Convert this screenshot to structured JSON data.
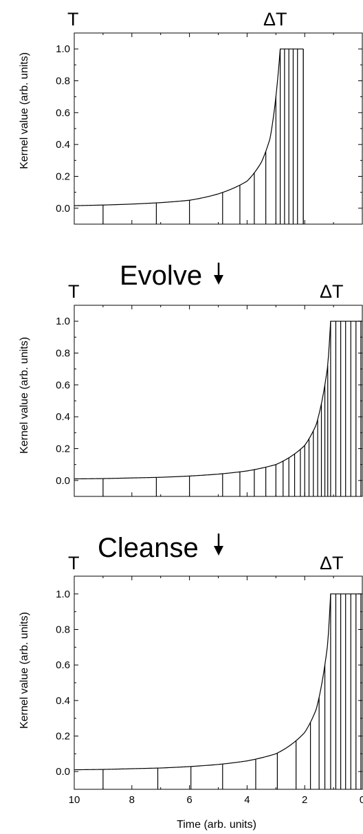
{
  "chart_data": [
    {
      "type": "line",
      "title": "",
      "corner_left": "T",
      "corner_right": "ΔT",
      "xlabel": "",
      "ylabel": "Kernel value (arb. units)",
      "xlim": [
        10,
        0
      ],
      "ylim": [
        -0.1,
        1.1
      ],
      "yticks": [
        "0.0",
        "0.2",
        "0.4",
        "0.6",
        "0.8",
        "1.0"
      ],
      "xticks": [],
      "kernel_curve": {
        "x": [
          10,
          9,
          8,
          7,
          6,
          5,
          4,
          3.5,
          3.2,
          3.0,
          2.85
        ],
        "y": [
          0.016,
          0.02,
          0.026,
          0.035,
          0.05,
          0.09,
          0.17,
          0.29,
          0.44,
          0.7,
          1.0
        ],
        "plateau_x": [
          2.85,
          2.05
        ]
      },
      "bin_edges_x": [
        9.0,
        7.15,
        6.0,
        4.85,
        4.25,
        3.75,
        3.35,
        3.0,
        2.85,
        2.7,
        2.55,
        2.4,
        2.25,
        2.05
      ]
    },
    {
      "type": "line",
      "title": "Evolve",
      "corner_left": "T",
      "corner_right": "ΔT",
      "xlabel": "",
      "ylabel": "Kernel value (arb. units)",
      "xlim": [
        10,
        0
      ],
      "ylim": [
        -0.1,
        1.1
      ],
      "yticks": [
        "0.0",
        "0.2",
        "0.4",
        "0.6",
        "0.8",
        "1.0"
      ],
      "xticks": [],
      "kernel_curve": {
        "x": [
          10,
          9,
          8,
          7,
          6,
          5,
          4,
          3.0,
          2.0,
          1.6,
          1.4,
          1.2,
          1.1
        ],
        "y": [
          0.01,
          0.012,
          0.016,
          0.02,
          0.028,
          0.04,
          0.06,
          0.1,
          0.22,
          0.35,
          0.5,
          0.72,
          1.0
        ],
        "plateau_x": [
          1.1,
          0.0
        ]
      },
      "bin_edges_x": [
        9.0,
        7.15,
        6.0,
        4.85,
        4.25,
        3.75,
        3.35,
        3.0,
        2.75,
        2.55,
        2.35,
        2.15,
        2.0,
        1.85,
        1.7,
        1.55,
        1.42,
        1.3,
        1.2,
        1.1,
        0.92,
        0.75,
        0.58,
        0.4,
        0.22,
        0.05
      ]
    },
    {
      "type": "line",
      "title": "Cleanse",
      "corner_left": "T",
      "corner_right": "ΔT",
      "xlabel": "Time (arb. units)",
      "ylabel": "Kernel value (arb. units)",
      "xlim": [
        10,
        0
      ],
      "ylim": [
        -0.1,
        1.1
      ],
      "yticks": [
        "0.0",
        "0.2",
        "0.4",
        "0.6",
        "0.8",
        "1.0"
      ],
      "xticks": [
        "10",
        "8",
        "6",
        "4",
        "2",
        "0"
      ],
      "kernel_curve": {
        "x": [
          10,
          9,
          8,
          7,
          6,
          5,
          4,
          3.0,
          2.0,
          1.6,
          1.4,
          1.2,
          1.1
        ],
        "y": [
          0.01,
          0.012,
          0.016,
          0.02,
          0.028,
          0.04,
          0.06,
          0.1,
          0.22,
          0.35,
          0.5,
          0.72,
          1.0
        ],
        "plateau_x": [
          1.1,
          0.0
        ]
      },
      "bin_edges_x": [
        9.0,
        7.1,
        5.95,
        4.85,
        3.7,
        2.95,
        2.3,
        1.8,
        1.5,
        1.3,
        1.1,
        0.92,
        0.75,
        0.58,
        0.4,
        0.22,
        0.05
      ]
    }
  ]
}
